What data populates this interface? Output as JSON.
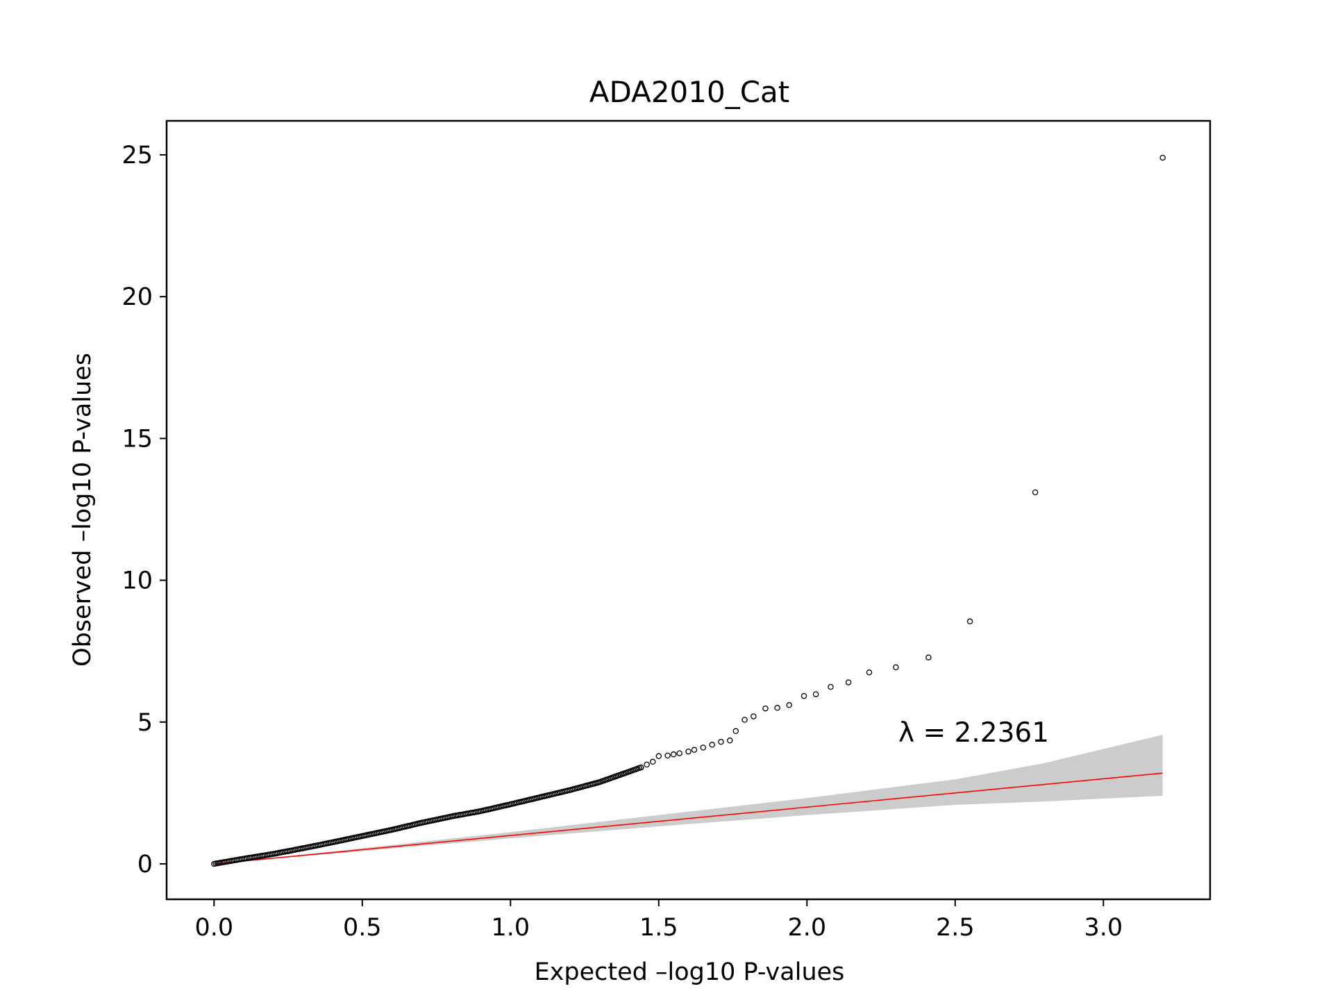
{
  "chart_data": {
    "type": "scatter",
    "title": "ADA2010_Cat",
    "xlabel": "Expected –log10 P-values",
    "ylabel": "Observed –log10 P-values",
    "xlim": [
      -0.16,
      3.36
    ],
    "ylim": [
      -1.25,
      26.2
    ],
    "xticks": [
      0.0,
      0.5,
      1.0,
      1.5,
      2.0,
      2.5,
      3.0
    ],
    "xtick_labels": [
      "0.0",
      "0.5",
      "1.0",
      "1.5",
      "2.0",
      "2.5",
      "3.0"
    ],
    "yticks": [
      0,
      5,
      10,
      15,
      20,
      25
    ],
    "ytick_labels": [
      "0",
      "5",
      "10",
      "15",
      "20",
      "25"
    ],
    "grid": false,
    "annotation": "λ = 2.2361",
    "colors": {
      "points": "#000000",
      "reference_line": "#ff0000",
      "confidence_band": "#cccccc"
    },
    "reference_line": {
      "x": [
        0.0,
        3.2
      ],
      "y": [
        0.0,
        3.2
      ]
    },
    "confidence_band": {
      "x": [
        0.0,
        0.5,
        1.0,
        1.5,
        2.0,
        2.5,
        2.8,
        3.2
      ],
      "upper": [
        0.0,
        0.55,
        1.12,
        1.72,
        2.32,
        2.98,
        3.55,
        4.55
      ],
      "lower": [
        0.0,
        0.45,
        0.9,
        1.32,
        1.72,
        2.08,
        2.2,
        2.4
      ]
    },
    "tail_points": {
      "x": [
        1.44,
        1.46,
        1.48,
        1.5,
        1.53,
        1.55,
        1.57,
        1.6,
        1.62,
        1.65,
        1.68,
        1.71,
        1.74,
        1.76,
        1.79,
        1.82,
        1.86,
        1.9,
        1.94,
        1.99,
        2.03,
        2.08,
        2.14,
        2.21,
        2.3,
        2.41,
        2.55,
        2.77,
        3.2
      ],
      "y": [
        3.4,
        3.5,
        3.6,
        3.8,
        3.82,
        3.86,
        3.9,
        3.96,
        4.02,
        4.1,
        4.2,
        4.3,
        4.35,
        4.68,
        5.08,
        5.2,
        5.48,
        5.5,
        5.6,
        5.92,
        5.98,
        6.24,
        6.4,
        6.75,
        6.93,
        7.28,
        8.55,
        13.1,
        24.9
      ]
    },
    "bulk_curve": {
      "x": [
        0.0,
        0.1,
        0.2,
        0.3,
        0.4,
        0.5,
        0.6,
        0.7,
        0.8,
        0.9,
        1.0,
        1.1,
        1.2,
        1.3,
        1.4,
        1.44
      ],
      "y": [
        0.0,
        0.18,
        0.35,
        0.55,
        0.76,
        0.98,
        1.2,
        1.45,
        1.67,
        1.86,
        2.1,
        2.35,
        2.6,
        2.88,
        3.25,
        3.4
      ]
    }
  }
}
